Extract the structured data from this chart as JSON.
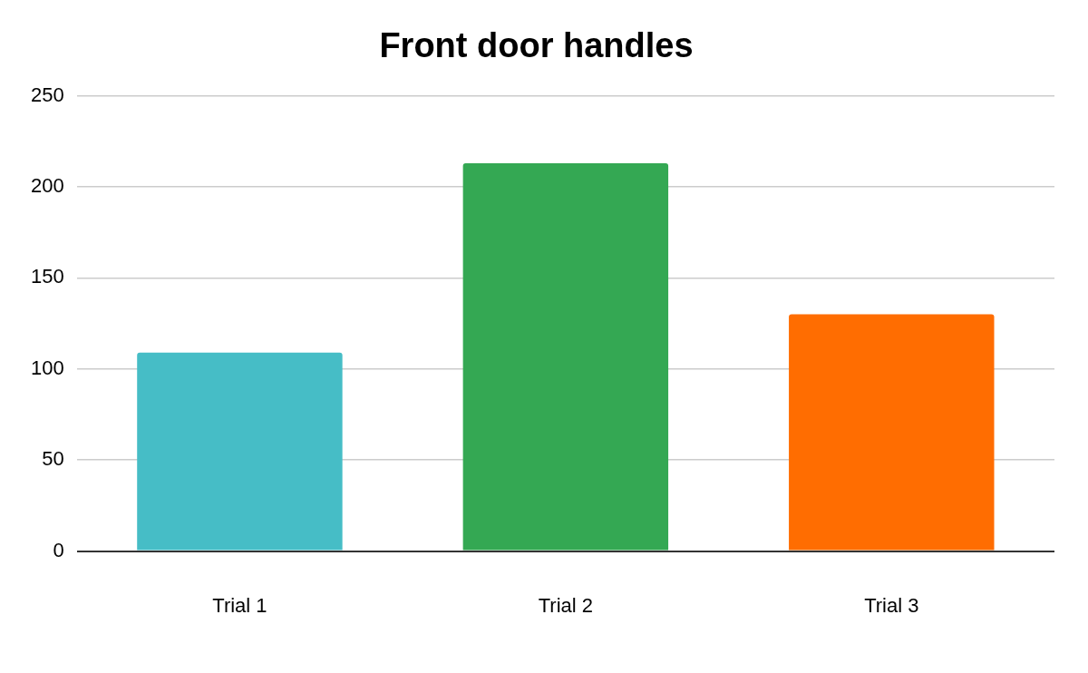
{
  "chart_data": {
    "type": "bar",
    "title": "Front door handles",
    "categories": [
      "Trial 1",
      "Trial 2",
      "Trial 3"
    ],
    "values": [
      109,
      213,
      130
    ],
    "colors": [
      "#46bdc6",
      "#34a853",
      "#ff6d01"
    ],
    "ylim": [
      0,
      250
    ],
    "yticks": [
      0,
      50,
      100,
      150,
      200,
      250
    ],
    "grid": "y"
  }
}
